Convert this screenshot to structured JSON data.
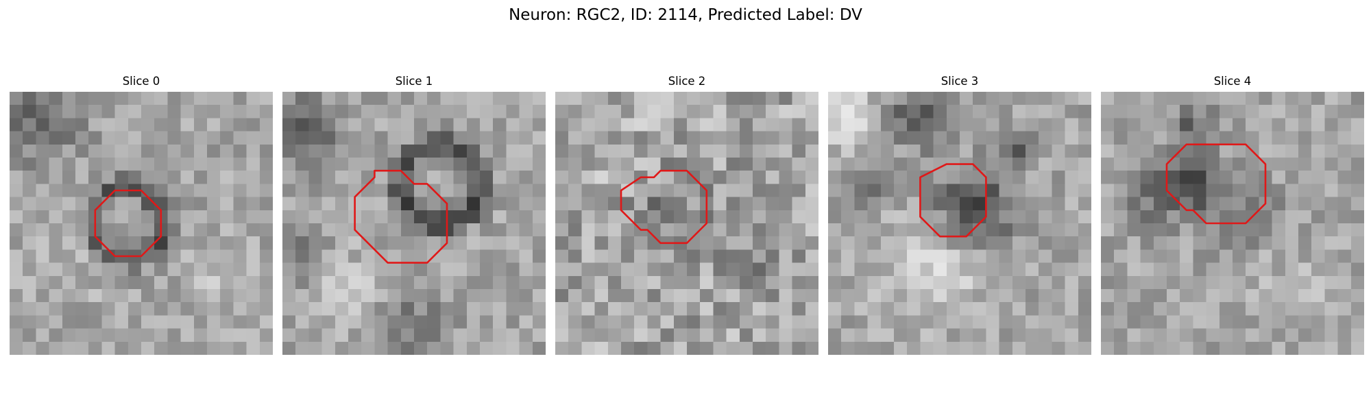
{
  "figure": {
    "title": "Neuron: RGC2, ID: 2114, Predicted Label: DV"
  },
  "roi_color": "#e01818",
  "slices": [
    {
      "title": "Slice 0",
      "roi_outline": [
        [
          8,
          7.5
        ],
        [
          10,
          7.5
        ],
        [
          11.5,
          9
        ],
        [
          11.5,
          11
        ],
        [
          10,
          12.5
        ],
        [
          8,
          12.5
        ],
        [
          6.5,
          11
        ],
        [
          6.5,
          9
        ]
      ]
    },
    {
      "title": "Slice 1",
      "roi_outline": [
        [
          7,
          6
        ],
        [
          9,
          6
        ],
        [
          10,
          7
        ],
        [
          11,
          7
        ],
        [
          12.5,
          8.5
        ],
        [
          12.5,
          11.5
        ],
        [
          11,
          13
        ],
        [
          8,
          13
        ],
        [
          5.5,
          10.5
        ],
        [
          5.5,
          8
        ],
        [
          7,
          6.5
        ]
      ]
    },
    {
      "title": "Slice 2",
      "roi_outline": [
        [
          8,
          6
        ],
        [
          10,
          6
        ],
        [
          11.5,
          7.5
        ],
        [
          11.5,
          10
        ],
        [
          10,
          11.5
        ],
        [
          8,
          11.5
        ],
        [
          7,
          10.5
        ],
        [
          6.5,
          10.5
        ],
        [
          5,
          9
        ],
        [
          5,
          7.5
        ],
        [
          6.5,
          6.5
        ],
        [
          7.5,
          6.5
        ]
      ]
    },
    {
      "title": "Slice 3",
      "roi_outline": [
        [
          9,
          5.5
        ],
        [
          11,
          5.5
        ],
        [
          12,
          6.5
        ],
        [
          12,
          9.5
        ],
        [
          10.5,
          11
        ],
        [
          8.5,
          11
        ],
        [
          7,
          9.5
        ],
        [
          7,
          6.5
        ]
      ]
    },
    {
      "title": "Slice 4",
      "roi_outline": [
        [
          8,
          4
        ],
        [
          11,
          4
        ],
        [
          12.5,
          5.5
        ],
        [
          12.5,
          8.5
        ],
        [
          11,
          10
        ],
        [
          8,
          10
        ],
        [
          7,
          9
        ],
        [
          6.5,
          9
        ],
        [
          5,
          7.5
        ],
        [
          5,
          5.5
        ],
        [
          6.5,
          4
        ]
      ]
    }
  ]
}
